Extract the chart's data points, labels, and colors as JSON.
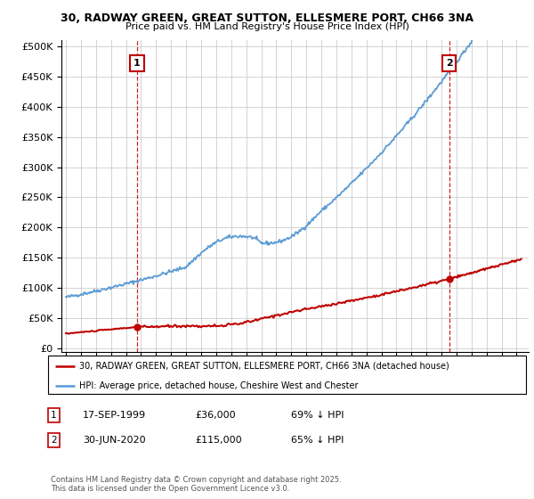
{
  "title_line1": "30, RADWAY GREEN, GREAT SUTTON, ELLESMERE PORT, CH66 3NA",
  "title_line2": "Price paid vs. HM Land Registry's House Price Index (HPI)",
  "background_color": "#ffffff",
  "grid_color": "#cccccc",
  "hpi_color": "#5b9bd5",
  "price_color": "#c00000",
  "marker1_date_x": 1999.72,
  "marker1_price": 36000,
  "marker2_date_x": 2020.5,
  "marker2_price": 115000,
  "ylim_max": 510000,
  "ylim_min": -5000,
  "xlim_min": 1994.7,
  "xlim_max": 2025.8,
  "legend_line1": "30, RADWAY GREEN, GREAT SUTTON, ELLESMERE PORT, CH66 3NA (detached house)",
  "legend_line2": "HPI: Average price, detached house, Cheshire West and Chester",
  "footnote": "Contains HM Land Registry data © Crown copyright and database right 2025.\nThis data is licensed under the Open Government Licence v3.0.",
  "table_row1": [
    "1",
    "17-SEP-1999",
    "£36,000",
    "69% ↓ HPI"
  ],
  "table_row2": [
    "2",
    "30-JUN-2020",
    "£115,000",
    "65% ↓ HPI"
  ]
}
